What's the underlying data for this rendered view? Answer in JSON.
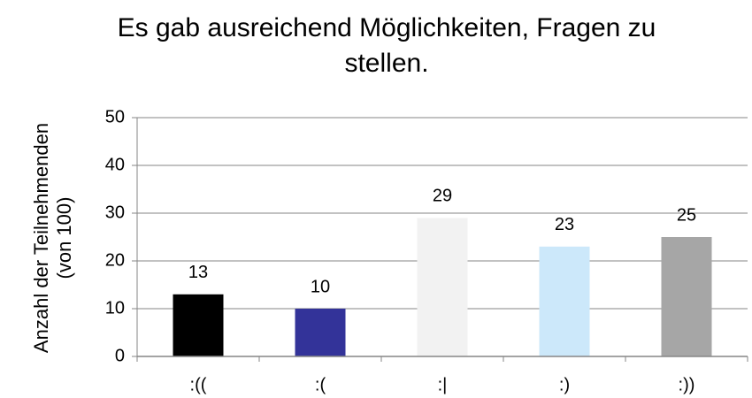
{
  "chart_data": {
    "type": "bar",
    "title": "Es gab ausreichend Möglichkeiten, Fragen zu stellen.",
    "y_label": "Anzahl der Teilnehmenden (von 100)",
    "categories": [
      ":((",
      ":(",
      ":|",
      ":)",
      ":))"
    ],
    "values": [
      13,
      10,
      29,
      23,
      25
    ],
    "colors": [
      "#000000",
      "#333399",
      "#f2f2f2",
      "#cce8fa",
      "#a6a6a6"
    ],
    "ylim": [
      0,
      50
    ],
    "yticks": [
      0,
      10,
      20,
      30,
      40,
      50
    ],
    "grid": true
  }
}
